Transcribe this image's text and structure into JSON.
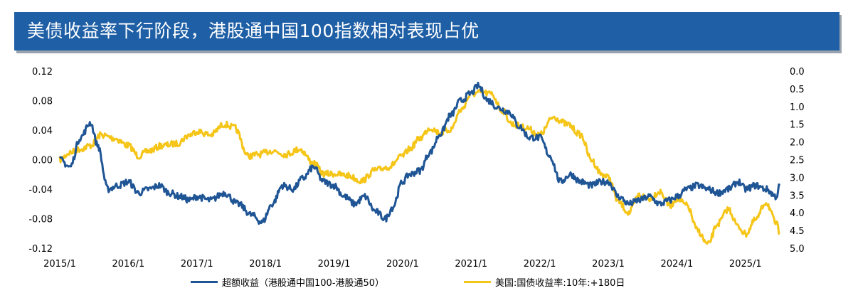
{
  "title": "美债收益率下行阶段，港股通中国100指数相对表现占优",
  "colors": {
    "title_bg": "#1f5fa6",
    "series_excess": "#1f5595",
    "series_yield": "#f5c518"
  },
  "chart_data": {
    "type": "line",
    "x_tick_labels": [
      "2015/1",
      "2016/1",
      "2017/1",
      "2018/1",
      "2019/1",
      "2020/1",
      "2021/1",
      "2022/1",
      "2023/1",
      "2024/1",
      "2025/1"
    ],
    "y_left": {
      "range": [
        -0.12,
        0.12
      ],
      "ticks": [
        "0.12",
        "0.08",
        "0.04",
        "0.00",
        "-0.04",
        "-0.08",
        "-0.12"
      ]
    },
    "y_right": {
      "range": [
        0.0,
        5.0
      ],
      "inverted": true,
      "ticks": [
        "0.0",
        "0.5",
        "1.0",
        "1.5",
        "2.0",
        "2.5",
        "3.0",
        "3.5",
        "4.0",
        "4.5",
        "5.0"
      ]
    },
    "series": [
      {
        "name": "超额收益（港股通中国100-港股通50）",
        "axis": "left",
        "x": [
          2015.0,
          2015.15,
          2015.3,
          2015.45,
          2015.55,
          2015.7,
          2015.85,
          2016.0,
          2016.15,
          2016.3,
          2016.45,
          2016.6,
          2016.75,
          2016.9,
          2017.0,
          2017.2,
          2017.4,
          2017.6,
          2017.8,
          2017.95,
          2018.1,
          2018.25,
          2018.4,
          2018.55,
          2018.7,
          2018.85,
          2019.0,
          2019.15,
          2019.3,
          2019.45,
          2019.6,
          2019.75,
          2019.85,
          2020.0,
          2020.1,
          2020.25,
          2020.4,
          2020.55,
          2020.7,
          2020.85,
          2021.0,
          2021.1,
          2021.25,
          2021.4,
          2021.55,
          2021.7,
          2021.85,
          2022.0,
          2022.15,
          2022.3,
          2022.45,
          2022.6,
          2022.75,
          2022.9,
          2023.0,
          2023.15,
          2023.3,
          2023.45,
          2023.6,
          2023.75,
          2023.9,
          2024.0,
          2024.15,
          2024.3,
          2024.45,
          2024.6,
          2024.75,
          2024.9,
          2025.0,
          2025.15,
          2025.3,
          2025.45,
          2025.5
        ],
        "values": [
          0.0,
          -0.01,
          0.03,
          0.05,
          0.02,
          -0.04,
          -0.035,
          -0.03,
          -0.045,
          -0.04,
          -0.035,
          -0.045,
          -0.05,
          -0.055,
          -0.05,
          -0.055,
          -0.045,
          -0.06,
          -0.075,
          -0.085,
          -0.06,
          -0.035,
          -0.04,
          -0.025,
          -0.01,
          -0.03,
          -0.035,
          -0.05,
          -0.06,
          -0.05,
          -0.07,
          -0.08,
          -0.065,
          -0.03,
          -0.02,
          -0.015,
          0.01,
          0.035,
          0.06,
          0.08,
          0.09,
          0.1,
          0.08,
          0.07,
          0.065,
          0.045,
          0.03,
          0.03,
          0.005,
          -0.03,
          -0.02,
          -0.03,
          -0.035,
          -0.03,
          -0.03,
          -0.05,
          -0.06,
          -0.055,
          -0.05,
          -0.06,
          -0.055,
          -0.05,
          -0.04,
          -0.035,
          -0.04,
          -0.045,
          -0.04,
          -0.03,
          -0.04,
          -0.035,
          -0.04,
          -0.05,
          -0.035
        ]
      },
      {
        "name": "美国:国债收益率:10年:+180日",
        "axis": "right",
        "x": [
          2015.0,
          2015.15,
          2015.3,
          2015.45,
          2015.6,
          2015.8,
          2016.0,
          2016.15,
          2016.3,
          2016.5,
          2016.7,
          2016.9,
          2017.0,
          2017.2,
          2017.4,
          2017.55,
          2017.75,
          2017.9,
          2018.1,
          2018.3,
          2018.5,
          2018.7,
          2018.85,
          2019.0,
          2019.2,
          2019.4,
          2019.6,
          2019.8,
          2020.0,
          2020.1,
          2020.25,
          2020.4,
          2020.55,
          2020.7,
          2020.85,
          2021.0,
          2021.15,
          2021.3,
          2021.45,
          2021.6,
          2021.8,
          2022.0,
          2022.2,
          2022.4,
          2022.6,
          2022.75,
          2022.9,
          2023.0,
          2023.15,
          2023.3,
          2023.45,
          2023.6,
          2023.75,
          2023.9,
          2024.0,
          2024.15,
          2024.3,
          2024.45,
          2024.6,
          2024.75,
          2024.9,
          2025.0,
          2025.15,
          2025.3,
          2025.45,
          2025.5
        ],
        "values": [
          2.5,
          2.3,
          2.2,
          2.1,
          1.8,
          1.9,
          2.1,
          2.4,
          2.25,
          2.1,
          2.05,
          1.8,
          1.7,
          1.8,
          1.5,
          1.6,
          2.4,
          2.35,
          2.25,
          2.35,
          2.2,
          2.6,
          2.9,
          2.9,
          2.95,
          3.1,
          2.8,
          2.7,
          2.4,
          2.2,
          1.9,
          1.6,
          1.75,
          1.65,
          1.1,
          0.65,
          0.6,
          0.65,
          1.1,
          1.5,
          1.6,
          1.8,
          1.3,
          1.5,
          1.8,
          2.5,
          2.9,
          3.0,
          3.7,
          4.0,
          3.5,
          3.6,
          3.4,
          3.8,
          3.6,
          3.8,
          4.5,
          4.9,
          4.3,
          3.9,
          4.4,
          4.6,
          4.2,
          3.7,
          4.3,
          4.6
        ]
      }
    ]
  },
  "legend": {
    "items": [
      {
        "label": "超额收益（港股通中国100-港股通50）",
        "color": "#1f5595"
      },
      {
        "label": "美国:国债收益率:10年:+180日",
        "color": "#f5c518"
      }
    ]
  }
}
